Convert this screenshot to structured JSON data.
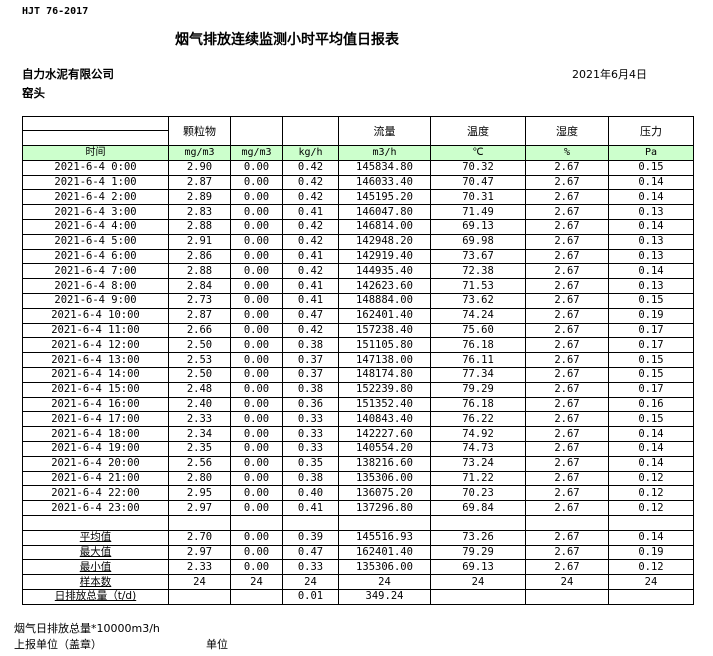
{
  "standard": "HJT  76-2017",
  "title": "烟气排放连续监测小时平均值日报表",
  "company": "自力水泥有限公司",
  "date": "2021年6月4日",
  "unit_name": "窑头",
  "header_colors": {
    "unit_row_bg": "#ccffcc"
  },
  "columns": [
    {
      "name": "",
      "unit": "时间"
    },
    {
      "name": "颗粒物",
      "unit": "mg/m3"
    },
    {
      "name": "",
      "unit": "mg/m3"
    },
    {
      "name": "",
      "unit": "kg/h"
    },
    {
      "name": "流量",
      "unit": "m3/h"
    },
    {
      "name": "温度",
      "unit": "℃"
    },
    {
      "name": "湿度",
      "unit": "%"
    },
    {
      "name": "压力",
      "unit": "Pa"
    }
  ],
  "rows": [
    [
      "2021-6-4 0:00",
      "2.90",
      "0.00",
      "0.42",
      "145834.80",
      "70.32",
      "2.67",
      "0.15"
    ],
    [
      "2021-6-4 1:00",
      "2.87",
      "0.00",
      "0.42",
      "146033.40",
      "70.47",
      "2.67",
      "0.14"
    ],
    [
      "2021-6-4 2:00",
      "2.89",
      "0.00",
      "0.42",
      "145195.20",
      "70.31",
      "2.67",
      "0.14"
    ],
    [
      "2021-6-4 3:00",
      "2.83",
      "0.00",
      "0.41",
      "146047.80",
      "71.49",
      "2.67",
      "0.13"
    ],
    [
      "2021-6-4 4:00",
      "2.88",
      "0.00",
      "0.42",
      "146814.00",
      "69.13",
      "2.67",
      "0.14"
    ],
    [
      "2021-6-4 5:00",
      "2.91",
      "0.00",
      "0.42",
      "142948.20",
      "69.98",
      "2.67",
      "0.13"
    ],
    [
      "2021-6-4 6:00",
      "2.86",
      "0.00",
      "0.41",
      "142919.40",
      "73.67",
      "2.67",
      "0.13"
    ],
    [
      "2021-6-4 7:00",
      "2.88",
      "0.00",
      "0.42",
      "144935.40",
      "72.38",
      "2.67",
      "0.14"
    ],
    [
      "2021-6-4 8:00",
      "2.84",
      "0.00",
      "0.41",
      "142623.60",
      "71.53",
      "2.67",
      "0.13"
    ],
    [
      "2021-6-4 9:00",
      "2.73",
      "0.00",
      "0.41",
      "148884.00",
      "73.62",
      "2.67",
      "0.15"
    ],
    [
      "2021-6-4 10:00",
      "2.87",
      "0.00",
      "0.47",
      "162401.40",
      "74.24",
      "2.67",
      "0.19"
    ],
    [
      "2021-6-4 11:00",
      "2.66",
      "0.00",
      "0.42",
      "157238.40",
      "75.60",
      "2.67",
      "0.17"
    ],
    [
      "2021-6-4 12:00",
      "2.50",
      "0.00",
      "0.38",
      "151105.80",
      "76.18",
      "2.67",
      "0.17"
    ],
    [
      "2021-6-4 13:00",
      "2.53",
      "0.00",
      "0.37",
      "147138.00",
      "76.11",
      "2.67",
      "0.15"
    ],
    [
      "2021-6-4 14:00",
      "2.50",
      "0.00",
      "0.37",
      "148174.80",
      "77.34",
      "2.67",
      "0.15"
    ],
    [
      "2021-6-4 15:00",
      "2.48",
      "0.00",
      "0.38",
      "152239.80",
      "79.29",
      "2.67",
      "0.17"
    ],
    [
      "2021-6-4 16:00",
      "2.40",
      "0.00",
      "0.36",
      "151352.40",
      "76.18",
      "2.67",
      "0.16"
    ],
    [
      "2021-6-4 17:00",
      "2.33",
      "0.00",
      "0.33",
      "140843.40",
      "76.22",
      "2.67",
      "0.15"
    ],
    [
      "2021-6-4 18:00",
      "2.34",
      "0.00",
      "0.33",
      "142227.60",
      "74.92",
      "2.67",
      "0.14"
    ],
    [
      "2021-6-4 19:00",
      "2.35",
      "0.00",
      "0.33",
      "140554.20",
      "74.73",
      "2.67",
      "0.14"
    ],
    [
      "2021-6-4 20:00",
      "2.56",
      "0.00",
      "0.35",
      "138216.60",
      "73.24",
      "2.67",
      "0.14"
    ],
    [
      "2021-6-4 21:00",
      "2.80",
      "0.00",
      "0.38",
      "135306.00",
      "71.22",
      "2.67",
      "0.12"
    ],
    [
      "2021-6-4 22:00",
      "2.95",
      "0.00",
      "0.40",
      "136075.20",
      "70.23",
      "2.67",
      "0.12"
    ],
    [
      "2021-6-4 23:00",
      "2.97",
      "0.00",
      "0.41",
      "137296.80",
      "69.84",
      "2.67",
      "0.12"
    ]
  ],
  "stats": [
    [
      "平均值",
      "2.70",
      "0.00",
      "0.39",
      "145516.93",
      "73.26",
      "2.67",
      "0.14"
    ],
    [
      "最大值",
      "2.97",
      "0.00",
      "0.47",
      "162401.40",
      "79.29",
      "2.67",
      "0.19"
    ],
    [
      "最小值",
      "2.33",
      "0.00",
      "0.33",
      "135306.00",
      "69.13",
      "2.67",
      "0.12"
    ],
    [
      "样本数",
      "24",
      "24",
      "24",
      "24",
      "24",
      "24",
      "24"
    ],
    [
      "日排放总量（t/d)",
      "",
      "",
      "0.01",
      "349.24",
      "",
      "",
      ""
    ]
  ],
  "footer": {
    "note": "烟气日排放总量*10000m3/h",
    "report_unit": "上报单位（盖章）",
    "unit_label": "单位"
  }
}
